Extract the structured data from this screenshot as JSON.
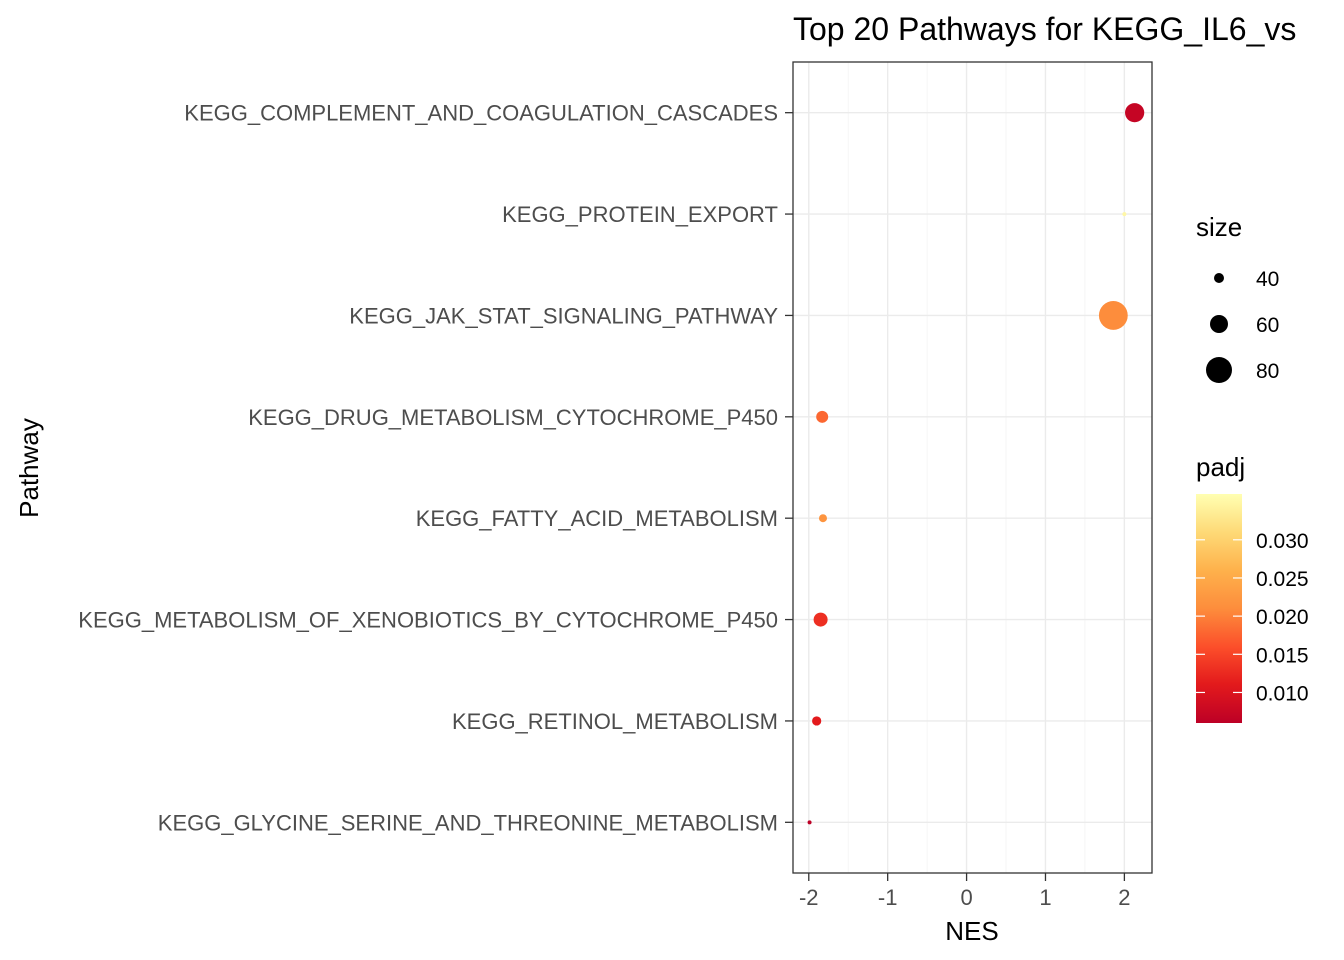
{
  "chart_data": {
    "type": "scatter",
    "title": "Top 20 Pathways for  KEGG_IL6_vs",
    "xlabel": "NES",
    "ylabel": "Pathway",
    "xlim": [
      -2.2,
      2.35
    ],
    "xticks": [
      -2,
      -1,
      0,
      1,
      2
    ],
    "xtick_labels": [
      "-2",
      "-1",
      "0",
      "1",
      "2"
    ],
    "grid": true,
    "categories": [
      "KEGG_COMPLEMENT_AND_COAGULATION_CASCADES",
      "KEGG_PROTEIN_EXPORT",
      "KEGG_JAK_STAT_SIGNALING_PATHWAY",
      "KEGG_DRUG_METABOLISM_CYTOCHROME_P450",
      "KEGG_FATTY_ACID_METABOLISM",
      "KEGG_METABOLISM_OF_XENOBIOTICS_BY_CYTOCHROME_P450",
      "KEGG_RETINOL_METABOLISM",
      "KEGG_GLYCINE_SERINE_AND_THREONINE_METABOLISM"
    ],
    "points": [
      {
        "pathway": "KEGG_COMPLEMENT_AND_COAGULATION_CASCADES",
        "NES": 2.13,
        "size": 68,
        "padj": 0.007
      },
      {
        "pathway": "KEGG_PROTEIN_EXPORT",
        "NES": 2.0,
        "size": 23,
        "padj": 0.035
      },
      {
        "pathway": "KEGG_JAK_STAT_SIGNALING_PATHWAY",
        "NES": 1.86,
        "size": 92,
        "padj": 0.021
      },
      {
        "pathway": "KEGG_DRUG_METABOLISM_CYTOCHROME_P450",
        "NES": -1.83,
        "size": 50,
        "padj": 0.018
      },
      {
        "pathway": "KEGG_FATTY_ACID_METABOLISM",
        "NES": -1.82,
        "size": 40,
        "padj": 0.022
      },
      {
        "pathway": "KEGG_METABOLISM_OF_XENOBIOTICS_BY_CYTOCHROME_P450",
        "NES": -1.85,
        "size": 55,
        "padj": 0.013
      },
      {
        "pathway": "KEGG_RETINOL_METABOLISM",
        "NES": -1.9,
        "size": 43,
        "padj": 0.011
      },
      {
        "pathway": "KEGG_GLYCINE_SERINE_AND_THREONINE_METABOLISM",
        "NES": -1.99,
        "size": 30,
        "padj": 0.006
      }
    ],
    "legend_size": {
      "title": "size",
      "breaks": [
        40,
        60,
        80
      ],
      "labels": [
        "40",
        "60",
        "80"
      ],
      "placement": "right"
    },
    "legend_color": {
      "title": "padj",
      "breaks": [
        0.03,
        0.025,
        0.02,
        0.015,
        0.01
      ],
      "labels": [
        "0.030",
        "0.025",
        "0.020",
        "0.015",
        "0.010"
      ],
      "range": [
        0.006,
        0.036
      ],
      "colormap": [
        "#bd0026",
        "#e31a1c",
        "#fc4e2a",
        "#fd8d3c",
        "#feb24c",
        "#fed976",
        "#ffffb2"
      ],
      "placement": "right"
    }
  }
}
